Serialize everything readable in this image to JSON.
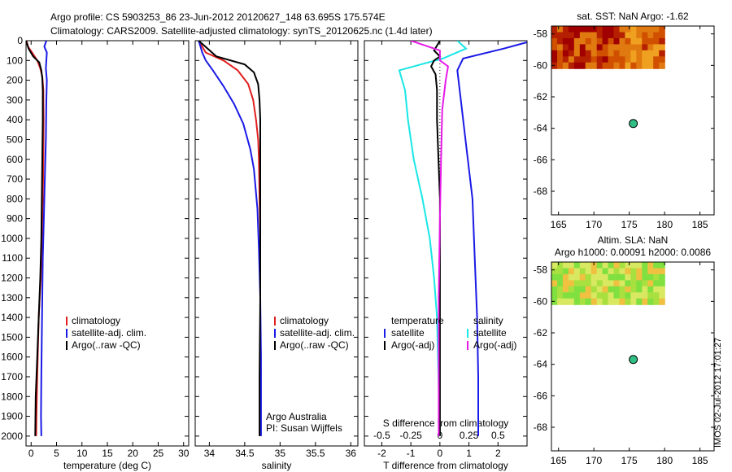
{
  "header": {
    "title_line1": "Argo profile: CS 5903253_86 23-Jun-2012 20120627_148 63.695S 175.574E",
    "title_line2": "Climatology: CARS2009. Satellite-adjusted climatology: synTS_20120625.nc (1.4d later)"
  },
  "side_stamp": "IMOS 02-Jul-2012 17:01:27",
  "colors": {
    "climatology": "#e02020",
    "satellite": "#1a1ae6",
    "argo": "#000000",
    "t_satellite": "#1ae6e6",
    "argo_salt_adj": "#e61ae6",
    "marker": "#2fbf84"
  },
  "chart_data": [
    {
      "type": "line",
      "id": "temperature-profile",
      "xlabel": "temperature (deg C)",
      "ylabel": "",
      "xlim": [
        -1,
        31
      ],
      "ylim": [
        2050,
        0
      ],
      "xticks": [
        0,
        5,
        10,
        15,
        20,
        25,
        30
      ],
      "yticks": [
        0,
        100,
        200,
        300,
        400,
        500,
        600,
        700,
        800,
        900,
        1000,
        1100,
        1200,
        1300,
        1400,
        1500,
        1600,
        1700,
        1800,
        1900,
        2000
      ],
      "grid": false,
      "legend": {
        "placement": "lower-middle",
        "entries": [
          "climatology",
          "satellite-adj. clim.",
          "Argo(..raw -QC)"
        ]
      },
      "series": [
        {
          "name": "climatology",
          "color_key": "climatology",
          "x": [
            -0.9,
            -0.6,
            0.2,
            1.2,
            1.8,
            2.2,
            2.4,
            2.45,
            2.4,
            2.3,
            2.1,
            1.9,
            1.5,
            1.2,
            1.05,
            1.0
          ],
          "y": [
            0,
            30,
            60,
            100,
            140,
            180,
            250,
            400,
            600,
            800,
            1000,
            1200,
            1400,
            1700,
            1900,
            2000
          ]
        },
        {
          "name": "satellite-adj. clim.",
          "color_key": "satellite",
          "x": [
            3.0,
            2.6,
            3.1,
            3.0,
            2.9,
            3.1,
            3.0,
            2.9,
            2.7,
            2.5,
            2.3,
            2.2,
            2.1,
            2.0,
            1.95,
            2.0
          ],
          "y": [
            0,
            30,
            60,
            100,
            140,
            200,
            300,
            500,
            700,
            900,
            1100,
            1300,
            1500,
            1700,
            1900,
            2000
          ]
        },
        {
          "name": "Argo(..raw -QC)",
          "color_key": "argo",
          "x": [
            -1.0,
            -0.5,
            0.4,
            1.6,
            2.0,
            2.2,
            2.3,
            2.3,
            2.2,
            2.1,
            2.0,
            1.8,
            1.5,
            1.2,
            0.9,
            0.8
          ],
          "y": [
            0,
            40,
            80,
            110,
            150,
            190,
            250,
            400,
            600,
            800,
            1000,
            1200,
            1400,
            1600,
            1800,
            2000
          ]
        }
      ]
    },
    {
      "type": "line",
      "id": "salinity-profile",
      "xlabel": "salinity",
      "xlim": [
        33.8,
        36.1
      ],
      "ylim": [
        2050,
        0
      ],
      "xticks": [
        34,
        34.5,
        35,
        35.5,
        36
      ],
      "grid": false,
      "legend": {
        "placement": "lower-middle",
        "entries": [
          "climatology",
          "satellite-adj. clim.",
          "Argo(..raw -QC)"
        ]
      },
      "annotation": [
        "Argo Australia",
        "PI: Susan Wijffels"
      ],
      "series": [
        {
          "name": "climatology",
          "color_key": "climatology",
          "x": [
            33.85,
            33.95,
            34.2,
            34.4,
            34.55,
            34.62,
            34.66,
            34.69,
            34.7,
            34.71,
            34.72,
            34.72,
            34.72,
            34.72
          ],
          "y": [
            0,
            60,
            100,
            150,
            220,
            300,
            400,
            500,
            600,
            800,
            1000,
            1300,
            1700,
            2000
          ]
        },
        {
          "name": "satellite-adj. clim.",
          "color_key": "satellite",
          "x": [
            33.85,
            33.9,
            33.95,
            34.05,
            34.2,
            34.35,
            34.48,
            34.58,
            34.63,
            34.68,
            34.7,
            34.72,
            34.73,
            34.73
          ],
          "y": [
            0,
            60,
            100,
            150,
            230,
            320,
            420,
            550,
            650,
            850,
            1050,
            1300,
            1600,
            2000
          ]
        },
        {
          "name": "Argo(..raw -QC)",
          "color_key": "argo",
          "x": [
            33.85,
            34.1,
            34.5,
            34.63,
            34.69,
            34.71,
            34.72,
            34.72,
            34.72,
            34.72,
            34.71,
            34.71
          ],
          "y": [
            0,
            80,
            120,
            160,
            220,
            300,
            400,
            600,
            900,
            1300,
            1700,
            2000
          ]
        }
      ]
    },
    {
      "type": "line",
      "id": "difference-profile",
      "xlabel": "T difference from climatology",
      "x2label": "S difference from climatology",
      "xlim": [
        -2.6,
        3.0
      ],
      "x2lim": [
        -0.65,
        0.75
      ],
      "ylim": [
        2050,
        0
      ],
      "xticks": [
        -2,
        -1,
        0,
        1,
        2
      ],
      "x2ticks": [
        -0.5,
        -0.25,
        0,
        0.25,
        0.5
      ],
      "grid": false,
      "legend": {
        "placement": "lower-middle",
        "temperature": [
          "temperature",
          "satellite",
          "Argo(-adj)"
        ],
        "salinity": [
          "salinity",
          "satellite",
          "Argo(-adj)"
        ]
      },
      "series": [
        {
          "name": "satellite",
          "group": "temperature",
          "color_key": "t_satellite",
          "x": [
            0.6,
            0.9,
            0.1,
            -1.4,
            -1.2,
            -1.1,
            -0.9,
            -0.6,
            -0.35,
            -0.2,
            -0.1,
            -0.05,
            0.0
          ],
          "y": [
            0,
            40,
            90,
            150,
            250,
            400,
            600,
            800,
            1000,
            1200,
            1400,
            1700,
            2000
          ]
        },
        {
          "name": "Argo(-adj)",
          "group": "temperature",
          "color_key": "argo",
          "x": [
            0.0,
            -0.2,
            0.0,
            -0.2,
            -0.3,
            -0.15,
            -0.1,
            -0.1,
            -0.05,
            0.0,
            0.0,
            0.0,
            0.0
          ],
          "y": [
            0,
            50,
            80,
            100,
            130,
            170,
            250,
            400,
            600,
            800,
            1200,
            1600,
            2000
          ]
        },
        {
          "name": "satellite",
          "group": "salinity",
          "color_key": "satellite",
          "x": [
            0.8,
            0.55,
            0.2,
            0.15,
            0.18,
            0.22,
            0.28,
            0.3,
            0.32,
            0.33,
            0.33
          ],
          "y": [
            0,
            40,
            90,
            150,
            300,
            500,
            800,
            1100,
            1400,
            1700,
            2000
          ]
        },
        {
          "name": "Argo(-adj)",
          "group": "salinity",
          "color_key": "argo_salt_adj",
          "x": [
            -0.25,
            0.0,
            0.0,
            0.07,
            0.05,
            0.02,
            0.01,
            0.0,
            -0.01,
            -0.01,
            -0.01
          ],
          "y": [
            0,
            50,
            100,
            130,
            200,
            350,
            600,
            900,
            1300,
            1700,
            2000
          ]
        }
      ]
    },
    {
      "type": "heatmap",
      "id": "sst-map",
      "title": "sat. SST: NaN Argo: -1.62",
      "xlim": [
        164,
        187
      ],
      "ylim": [
        -69.5,
        -57.5
      ],
      "xticks": [
        165,
        170,
        175,
        180,
        185
      ],
      "yticks": [
        -58,
        -60,
        -62,
        -64,
        -66,
        -68
      ],
      "field_extent": {
        "x": [
          164,
          180
        ],
        "y": [
          -60.2,
          -57.5
        ]
      },
      "palette": [
        "#a00000",
        "#b52000",
        "#d05000",
        "#e07a10",
        "#f0a020"
      ],
      "marker": {
        "lon": 175.574,
        "lat": -63.695
      }
    },
    {
      "type": "heatmap",
      "id": "sla-map",
      "title": "Altim. SLA: NaN",
      "subtitle": "Argo h1000: 0.00091 h2000: 0.0086",
      "xlim": [
        164,
        187
      ],
      "ylim": [
        -69.5,
        -57.5
      ],
      "xticks": [
        165,
        170,
        175,
        180,
        185
      ],
      "yticks": [
        -58,
        -60,
        -62,
        -64,
        -66,
        -68
      ],
      "field_extent": {
        "x": [
          164,
          180
        ],
        "y": [
          -60.2,
          -57.5
        ]
      },
      "palette": [
        "#80e040",
        "#a8e040",
        "#d8e860",
        "#f0c040",
        "#40c060"
      ],
      "marker": {
        "lon": 175.574,
        "lat": -63.695
      }
    }
  ]
}
